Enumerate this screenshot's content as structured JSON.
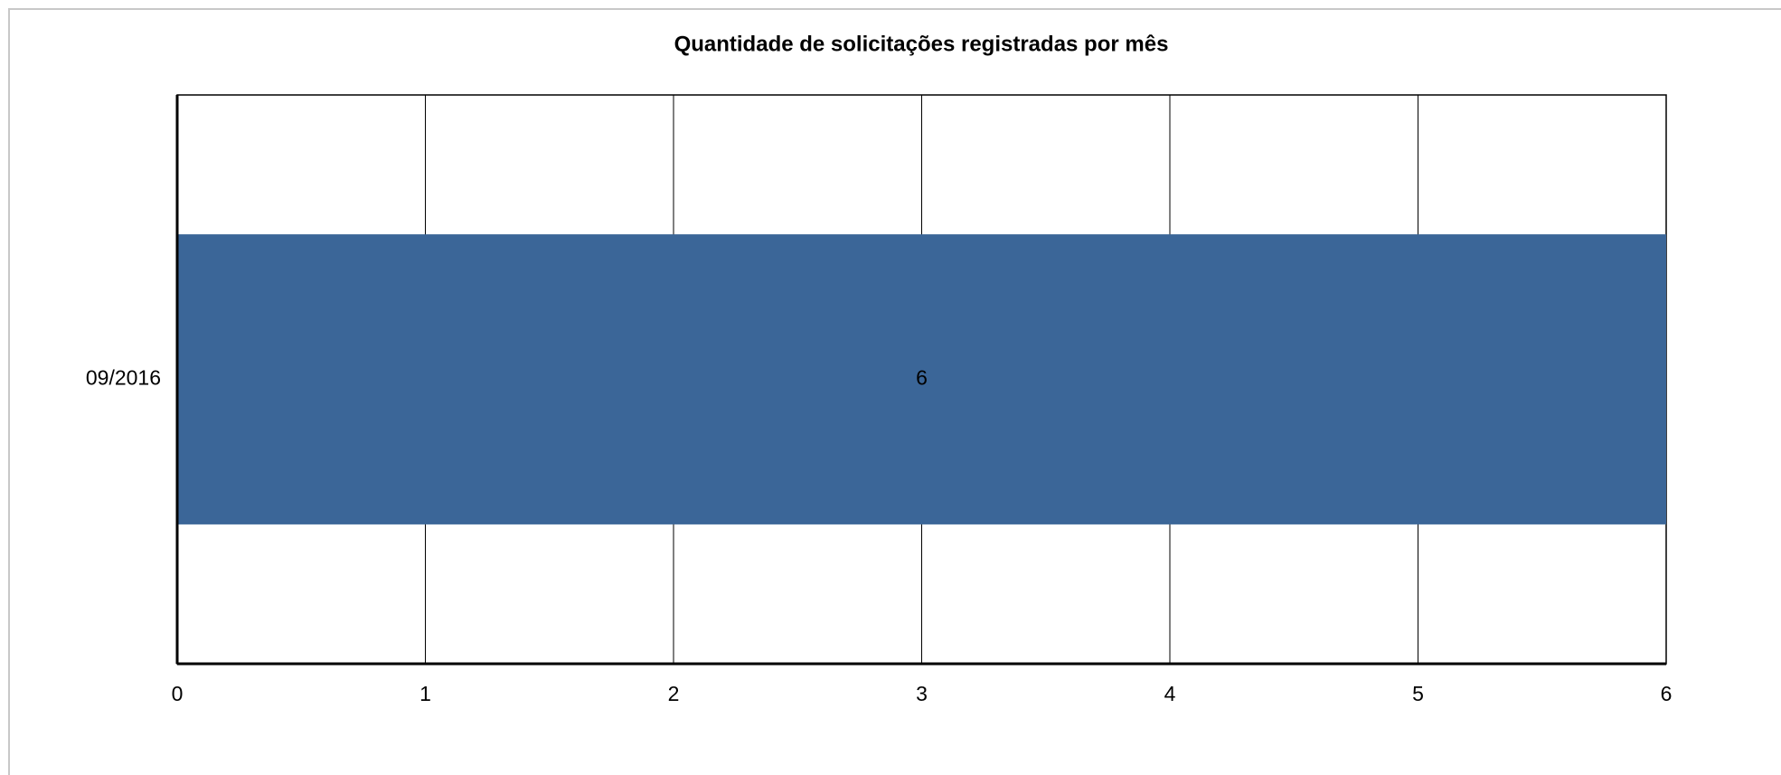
{
  "chart_data": {
    "type": "hbar",
    "title": "Quantidade de solicitações registradas por mês",
    "categories": [
      "09/2016"
    ],
    "values": [
      6
    ],
    "color": "#3b6698",
    "xlim": [
      0,
      6
    ],
    "xticks": [
      0,
      1,
      2,
      3,
      4,
      5,
      6
    ],
    "grid": true
  }
}
